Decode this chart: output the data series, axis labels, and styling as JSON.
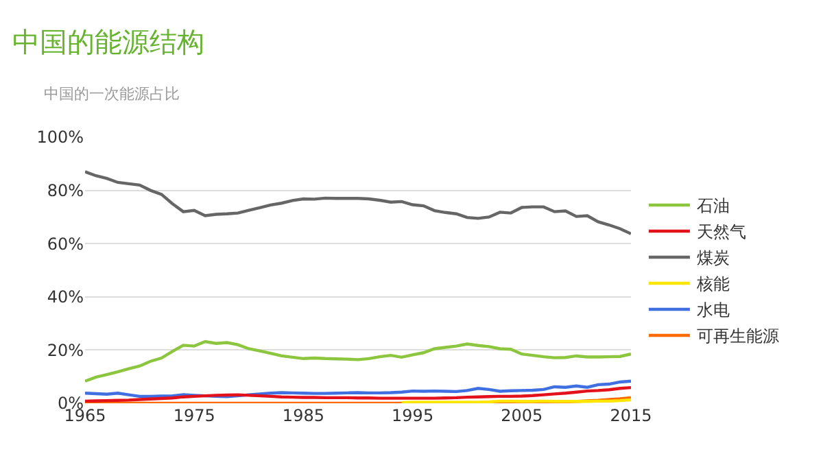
{
  "chart_data": {
    "type": "line",
    "title": "中国的能源结构",
    "ylabel": "中国的一次能源占比",
    "x": [
      1965,
      1966,
      1967,
      1968,
      1969,
      1970,
      1971,
      1972,
      1973,
      1974,
      1975,
      1976,
      1977,
      1978,
      1979,
      1980,
      1981,
      1982,
      1983,
      1984,
      1985,
      1986,
      1987,
      1988,
      1989,
      1990,
      1991,
      1992,
      1993,
      1994,
      1995,
      1996,
      1997,
      1998,
      1999,
      2000,
      2001,
      2002,
      2003,
      2004,
      2005,
      2006,
      2007,
      2008,
      2009,
      2010,
      2011,
      2012,
      2013,
      2014,
      2015
    ],
    "series": [
      {
        "name": "石油",
        "color": "#8cc63e",
        "values": [
          8.3,
          9.8,
          10.8,
          11.8,
          13,
          14,
          15.8,
          17,
          19.5,
          21.8,
          21.5,
          23.2,
          22.5,
          22.8,
          22,
          20.5,
          19.7,
          18.8,
          17.8,
          17.3,
          16.8,
          17,
          16.8,
          16.7,
          16.6,
          16.4,
          16.8,
          17.5,
          18,
          17.3,
          18.2,
          19,
          20.5,
          21,
          21.5,
          22.3,
          21.7,
          21.3,
          20.5,
          20.3,
          18.5,
          18,
          17.5,
          17.1,
          17.2,
          17.8,
          17.4,
          17.4,
          17.5,
          17.6,
          18.5
        ]
      },
      {
        "name": "天然气",
        "color": "#e3111a",
        "values": [
          0.8,
          0.9,
          1.0,
          1.1,
          1.2,
          1.4,
          1.6,
          1.8,
          2.0,
          2.4,
          2.6,
          2.8,
          3.0,
          3.1,
          3.2,
          3.0,
          2.8,
          2.6,
          2.4,
          2.3,
          2.2,
          2.2,
          2.1,
          2.1,
          2.1,
          2.0,
          2.0,
          1.9,
          1.9,
          1.9,
          1.9,
          1.9,
          1.9,
          2.0,
          2.1,
          2.3,
          2.4,
          2.5,
          2.6,
          2.6,
          2.7,
          2.9,
          3.2,
          3.5,
          3.8,
          4.2,
          4.6,
          4.8,
          5.1,
          5.6,
          5.9
        ]
      },
      {
        "name": "煤炭",
        "color": "#666666",
        "values": [
          87,
          85.5,
          84.5,
          83,
          82.5,
          82,
          80,
          78.5,
          75,
          72,
          72.5,
          70.5,
          71,
          71.2,
          71.5,
          72.5,
          73.5,
          74.5,
          75.2,
          76.2,
          76.8,
          76.7,
          77.1,
          77,
          77,
          77,
          76.8,
          76.3,
          75.6,
          75.8,
          74.6,
          74.2,
          72.4,
          71.7,
          71.2,
          69.8,
          69.5,
          70,
          71.8,
          71.5,
          73.6,
          73.8,
          73.8,
          72,
          72.3,
          70.2,
          70.5,
          68.2,
          67,
          65.6,
          63.7
        ]
      },
      {
        "name": "核能",
        "color": "#ffe600",
        "values": [
          null,
          null,
          null,
          null,
          null,
          null,
          null,
          null,
          null,
          null,
          null,
          null,
          null,
          null,
          null,
          null,
          null,
          null,
          null,
          null,
          null,
          null,
          null,
          null,
          null,
          null,
          null,
          null,
          null,
          0.3,
          0.4,
          0.4,
          0.4,
          0.4,
          0.4,
          0.4,
          0.4,
          0.5,
          0.8,
          0.8,
          0.7,
          0.7,
          0.8,
          0.7,
          0.7,
          0.7,
          0.7,
          0.8,
          0.8,
          1.0,
          1.3
        ]
      },
      {
        "name": "水电",
        "color": "#3f6fe0",
        "values": [
          3.8,
          3.6,
          3.4,
          3.8,
          3.2,
          2.6,
          2.6,
          2.7,
          2.8,
          3.2,
          3.0,
          2.8,
          2.6,
          2.5,
          2.8,
          3.2,
          3.5,
          3.8,
          4.0,
          3.9,
          3.8,
          3.7,
          3.7,
          3.8,
          3.9,
          4.0,
          3.9,
          3.9,
          4.0,
          4.2,
          4.6,
          4.5,
          4.6,
          4.5,
          4.4,
          4.8,
          5.6,
          5.2,
          4.5,
          4.7,
          4.8,
          4.9,
          5.2,
          6.2,
          6.0,
          6.5,
          6.0,
          7.0,
          7.2,
          8.0,
          8.3
        ]
      },
      {
        "name": "可再生能源",
        "color": "#ff6a00",
        "values": [
          0,
          0,
          0,
          0,
          0,
          0,
          0,
          0,
          0,
          0,
          0,
          0,
          0,
          0,
          0,
          0,
          0,
          0,
          0,
          0,
          0,
          0,
          0,
          0,
          0,
          0,
          0,
          0,
          0,
          0,
          0,
          0,
          0,
          0,
          0.1,
          0.1,
          0.1,
          0.1,
          0.1,
          0.1,
          0.2,
          0.2,
          0.3,
          0.4,
          0.5,
          0.7,
          0.9,
          1.1,
          1.4,
          1.7,
          2.1
        ]
      }
    ],
    "xlim": [
      1965,
      2015
    ],
    "xticks": [
      1965,
      1975,
      1985,
      1995,
      2005,
      2015
    ],
    "ylim": [
      0,
      100
    ],
    "yticks": [
      {
        "value": 0,
        "label": "0%"
      },
      {
        "value": 20,
        "label": "20%"
      },
      {
        "value": 40,
        "label": "40%"
      },
      {
        "value": 60,
        "label": "60%"
      },
      {
        "value": 80,
        "label": "80%"
      },
      {
        "value": 100,
        "label": "100%"
      }
    ],
    "grid": "y",
    "legend": "right",
    "marker": "none",
    "line_style": "solid"
  }
}
